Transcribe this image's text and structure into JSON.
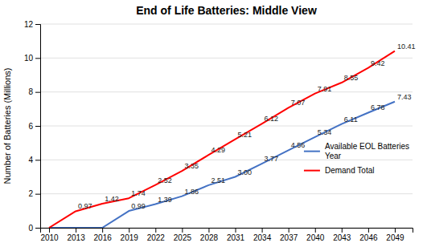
{
  "chart_data": {
    "type": "line",
    "title": "End of Life Batteries: Middle View",
    "ylabel": "Number of Batteries (Millions)",
    "x": [
      2010,
      2013,
      2016,
      2019,
      2022,
      2025,
      2028,
      2031,
      2034,
      2037,
      2040,
      2043,
      2046,
      2049
    ],
    "xlim": [
      2009,
      2051
    ],
    "xticks": [
      2010,
      2013,
      2016,
      2019,
      2022,
      2025,
      2028,
      2031,
      2034,
      2037,
      2040,
      2043,
      2046,
      2049
    ],
    "ylim": [
      0,
      12
    ],
    "yticks": [
      0,
      2,
      4,
      6,
      8,
      10,
      12
    ],
    "grid": "y",
    "legend": "right",
    "data_labels": true,
    "series": [
      {
        "name": "Available EOL Batteries\nYear",
        "color": "#4472C4",
        "values": [
          0.0,
          0.0,
          0.0,
          0.99,
          1.39,
          1.86,
          2.51,
          3.0,
          3.77,
          4.56,
          5.34,
          6.11,
          6.78,
          7.43
        ],
        "value_labels": [
          null,
          null,
          null,
          "0.99",
          "1.39",
          "1.86",
          "2.51",
          "3.00",
          "3.77",
          "4.56",
          "5.34",
          "6.11",
          "6.78",
          "7.43"
        ]
      },
      {
        "name": "Demand Total",
        "color": "#FF0000",
        "values": [
          0.0,
          0.97,
          1.42,
          1.74,
          2.52,
          3.35,
          4.29,
          5.21,
          6.12,
          7.07,
          7.91,
          8.55,
          9.42,
          10.41
        ],
        "value_labels": [
          null,
          "0.97",
          "1.42",
          "1.74",
          "2.52",
          "3.35",
          "4.29",
          "5.21",
          "6.12",
          "7.07",
          "7.91",
          "8.55",
          "9.42",
          "10.41"
        ]
      }
    ]
  }
}
